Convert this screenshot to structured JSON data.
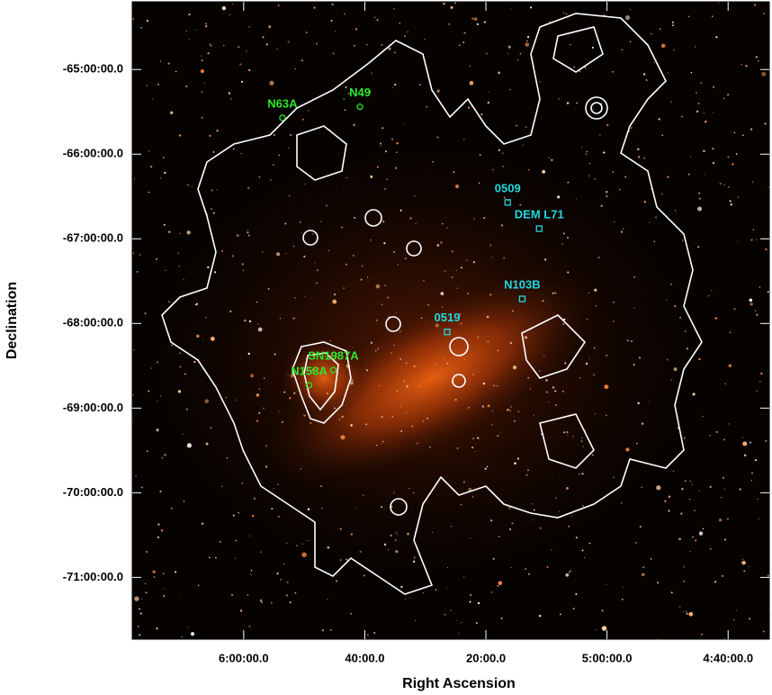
{
  "chart_data": {
    "type": "image",
    "xlabel": "Right Ascension",
    "ylabel": "Declination",
    "xlim": [
      94.6,
      68.3
    ],
    "ylim": [
      -71.73,
      -64.2
    ],
    "xticks": [
      {
        "value": 90,
        "label": "6:00:00.0"
      },
      {
        "value": 85,
        "label": "40:00.0"
      },
      {
        "value": 80,
        "label": "20:00.0"
      },
      {
        "value": 75,
        "label": "5:00:00.0"
      },
      {
        "value": 70,
        "label": "4:40:00.0"
      }
    ],
    "yticks": [
      {
        "value": -65,
        "label": "-65:00:00.0"
      },
      {
        "value": -66,
        "label": "-66:00:00.0"
      },
      {
        "value": -67,
        "label": "-67:00:00.0"
      },
      {
        "value": -68,
        "label": "-68:00:00.0"
      },
      {
        "value": -69,
        "label": "-69:00:00.0"
      },
      {
        "value": -70,
        "label": "-70:00:00.0"
      },
      {
        "value": -71,
        "label": "-71:00:00.0"
      }
    ],
    "grid": false,
    "annotations": [
      {
        "text": "N63A",
        "x": 88.4,
        "y": -65.57,
        "color": "#2ee82e",
        "marker": "circle"
      },
      {
        "text": "N49",
        "x": 85.2,
        "y": -65.44,
        "color": "#2ee82e",
        "marker": "circle"
      },
      {
        "text": "0509",
        "x": 79.1,
        "y": -66.57,
        "color": "#22d8e0",
        "marker": "square"
      },
      {
        "text": "DEM L71",
        "x": 77.8,
        "y": -66.88,
        "color": "#22d8e0",
        "marker": "square"
      },
      {
        "text": "N103B",
        "x": 78.5,
        "y": -67.71,
        "color": "#22d8e0",
        "marker": "square"
      },
      {
        "text": "0519",
        "x": 81.6,
        "y": -68.1,
        "color": "#22d8e0",
        "marker": "square"
      },
      {
        "text": "SN1987A",
        "x": 86.3,
        "y": -68.55,
        "color": "#2ee82e",
        "marker": "circle"
      },
      {
        "text": "N158A",
        "x": 87.3,
        "y": -68.73,
        "color": "#2ee82e",
        "marker": "circle"
      }
    ]
  }
}
